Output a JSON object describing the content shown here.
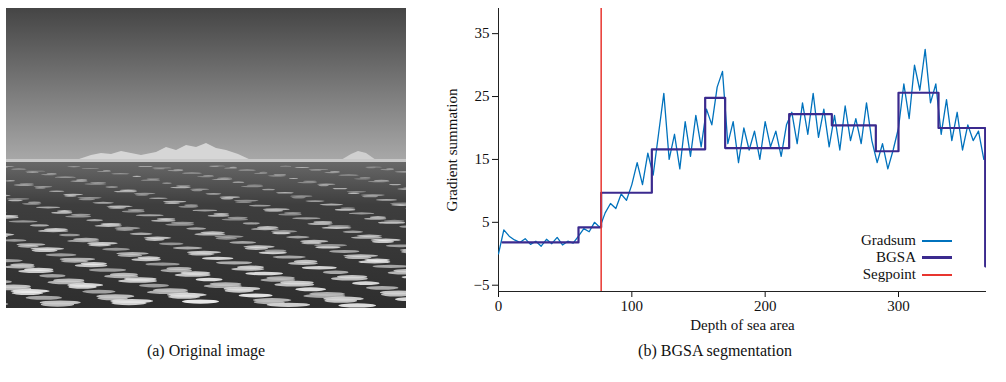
{
  "image": {
    "caption": "(a) Original image"
  },
  "chart_data": {
    "type": "line",
    "title": "(b) BGSA segmentation",
    "x_label": "Depth of sea area",
    "y_label": "Gradient summation",
    "xlim": [
      0,
      366
    ],
    "ylim": [
      -6,
      39
    ],
    "xticks": [
      0,
      100,
      200,
      300
    ],
    "yticks": [
      -5,
      5,
      15,
      25,
      35
    ],
    "legend": "lower right",
    "x": [
      0,
      4,
      8,
      12,
      16,
      20,
      24,
      28,
      32,
      36,
      40,
      44,
      48,
      52,
      56,
      60,
      64,
      68,
      72,
      76,
      80,
      84,
      88,
      92,
      96,
      100,
      104,
      108,
      112,
      116,
      120,
      124,
      128,
      132,
      136,
      140,
      144,
      148,
      152,
      156,
      160,
      164,
      168,
      172,
      176,
      180,
      184,
      188,
      192,
      196,
      200,
      204,
      208,
      212,
      216,
      220,
      224,
      228,
      232,
      236,
      240,
      244,
      248,
      252,
      256,
      260,
      264,
      268,
      272,
      276,
      280,
      284,
      288,
      292,
      296,
      300,
      304,
      308,
      312,
      316,
      320,
      324,
      328,
      332,
      336,
      340,
      344,
      348,
      352,
      356,
      360,
      364
    ],
    "series": [
      {
        "name": "Gradsum",
        "color": "#0072bd",
        "values": [
          0,
          3.8,
          2.8,
          2.2,
          1.8,
          2.4,
          1.5,
          2.0,
          1.2,
          2.3,
          1.6,
          2.6,
          1.4,
          2.0,
          1.7,
          2.8,
          4.0,
          3.5,
          5.0,
          4.2,
          6.5,
          8.0,
          7.2,
          9.5,
          8.5,
          11.0,
          14.5,
          11.0,
          16.0,
          12.5,
          19.0,
          25.5,
          15.0,
          19.0,
          13.5,
          21.0,
          15.5,
          22.0,
          17.0,
          23.0,
          20.5,
          26.5,
          29.0,
          17.5,
          21.0,
          14.5,
          20.0,
          16.5,
          19.5,
          15.0,
          21.0,
          17.0,
          19.5,
          15.5,
          20.5,
          22.5,
          17.5,
          24.0,
          19.0,
          25.5,
          18.5,
          23.0,
          17.0,
          22.0,
          16.5,
          23.5,
          18.0,
          21.5,
          17.5,
          24.0,
          18.0,
          14.5,
          17.5,
          13.5,
          16.5,
          20.0,
          27.0,
          21.5,
          30.0,
          26.0,
          32.5,
          24.0,
          27.0,
          19.0,
          24.5,
          18.0,
          22.5,
          16.5,
          20.5,
          18.0,
          19.5,
          15.0
        ]
      },
      {
        "name": "BGSA",
        "color": "#3b2a8e",
        "line_style": "step",
        "x": [
          3,
          60,
          77,
          115,
          155,
          170,
          218,
          250,
          283,
          300,
          330,
          365,
          366
        ],
        "values": [
          1.8,
          4.2,
          9.7,
          16.6,
          24.8,
          16.8,
          22.2,
          20.4,
          16.3,
          25.6,
          20.0,
          -2,
          -2
        ]
      },
      {
        "name": "Segpoint",
        "color": "#e8352f",
        "type": "vline",
        "x": [
          77
        ]
      }
    ]
  }
}
